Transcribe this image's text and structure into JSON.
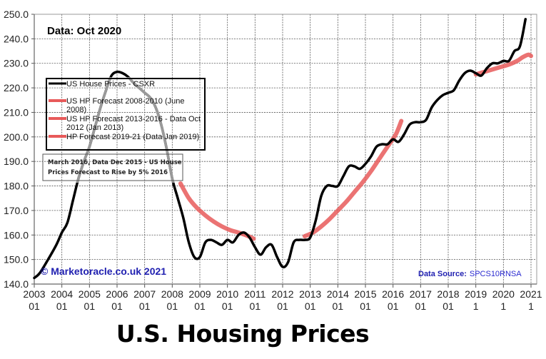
{
  "chart_data": {
    "type": "line",
    "title": "U.S. Housing Prices",
    "data_label": "Data:  Oct 2020",
    "xlabel": "",
    "ylabel": "",
    "xlim": [
      2003.0,
      2021.0
    ],
    "ylim": [
      140.0,
      250.0
    ],
    "grid": true,
    "y_ticks": [
      "140.0",
      "150.0",
      "160.0",
      "170.0",
      "180.0",
      "190.0",
      "200.0",
      "210.0",
      "220.0",
      "230.0",
      "240.0",
      "250.0"
    ],
    "x_ticks": [
      {
        "year": "2003",
        "month": "01"
      },
      {
        "year": "2004",
        "month": "01"
      },
      {
        "year": "2005",
        "month": "01"
      },
      {
        "year": "2006",
        "month": "01"
      },
      {
        "year": "2007",
        "month": "01"
      },
      {
        "year": "2008",
        "month": "01"
      },
      {
        "year": "2009",
        "month": "01"
      },
      {
        "year": "2010",
        "month": "01"
      },
      {
        "year": "2011",
        "month": "01"
      },
      {
        "year": "2012",
        "month": "01"
      },
      {
        "year": "2013",
        "month": "01"
      },
      {
        "year": "2014",
        "month": "01"
      },
      {
        "year": "2015",
        "month": "01"
      },
      {
        "year": "2016",
        "month": "01"
      },
      {
        "year": "2017",
        "month": "01"
      },
      {
        "year": "2018",
        "month": "01"
      },
      {
        "year": "2019",
        "month": "1"
      },
      {
        "year": "2020",
        "month": "1"
      },
      {
        "year": "2021",
        "month": "1"
      }
    ],
    "legend": {
      "placement": "top-left",
      "entries": [
        {
          "label": "US House Prices - CSXR",
          "color": "#000000"
        },
        {
          "label": "US HP Forecast 2008-2010 (June 2008)",
          "color": "#e85a5a"
        },
        {
          "label": "US HP Forecast 2013-2016 - Data Oct 2012 (Jan 2013)",
          "color": "#e85a5a"
        },
        {
          "label": "HP Forecast 2019-21 (Data Jan 2019)",
          "color": "#e85a5a"
        }
      ]
    },
    "annotation_box": {
      "line1": "March 2016, Data Dec 2015 - US House",
      "line2": "Prices Forecast to Rise by 5% 2016"
    },
    "copyright": "© Marketoracle.co.uk 2021",
    "source_label": "Data Source:",
    "source_value": "SPCS10RNSA",
    "series": [
      {
        "name": "US House Prices - CSXR",
        "color": "#000000",
        "x": [
          2003.0,
          2003.2,
          2003.5,
          2003.8,
          2004.0,
          2004.2,
          2004.4,
          2004.6,
          2004.8,
          2005.0,
          2005.2,
          2005.4,
          2005.6,
          2005.8,
          2006.0,
          2006.2,
          2006.4,
          2006.6,
          2006.8,
          2007.0,
          2007.2,
          2007.4,
          2007.6,
          2007.8,
          2008.0,
          2008.2,
          2008.4,
          2008.6,
          2008.8,
          2009.0,
          2009.2,
          2009.4,
          2009.6,
          2009.8,
          2010.0,
          2010.2,
          2010.4,
          2010.6,
          2010.8,
          2011.0,
          2011.2,
          2011.4,
          2011.6,
          2011.8,
          2012.0,
          2012.2,
          2012.4,
          2012.6,
          2012.8,
          2013.0,
          2013.2,
          2013.4,
          2013.6,
          2013.8,
          2014.0,
          2014.2,
          2014.4,
          2014.6,
          2014.8,
          2015.0,
          2015.2,
          2015.4,
          2015.6,
          2015.8,
          2016.0,
          2016.2,
          2016.4,
          2016.6,
          2016.8,
          2017.0,
          2017.2,
          2017.4,
          2017.6,
          2017.8,
          2018.0,
          2018.2,
          2018.4,
          2018.6,
          2018.8,
          2019.0,
          2019.2,
          2019.4,
          2019.6,
          2019.8,
          2020.0,
          2020.2,
          2020.4,
          2020.6,
          2020.8
        ],
        "values": [
          142.5,
          144.5,
          150,
          156,
          161,
          165,
          174,
          183,
          190,
          196,
          204,
          212,
          219,
          225,
          226.5,
          226,
          224.5,
          222,
          220,
          218,
          216,
          212,
          205,
          195,
          183,
          175,
          167,
          157,
          151,
          151,
          157,
          158,
          157,
          156,
          158,
          157,
          160,
          161,
          159,
          155,
          152,
          155,
          156,
          151,
          147,
          149,
          157,
          158,
          158,
          159,
          166,
          176,
          180,
          180,
          180,
          184,
          188,
          188,
          187,
          189,
          192,
          196,
          197,
          197,
          199,
          198,
          201,
          205,
          206,
          206,
          207,
          212,
          215,
          217,
          218,
          219,
          223,
          226,
          227,
          226,
          225,
          228,
          230,
          230,
          231,
          231,
          235,
          237,
          248
        ]
      },
      {
        "name": "US HP Forecast 2008-2010 (June 2008)",
        "color": "#e85a5a",
        "x": [
          2008.3,
          2008.6,
          2008.9,
          2009.2,
          2009.5,
          2009.8,
          2010.1,
          2010.4,
          2010.7,
          2010.95
        ],
        "values": [
          181,
          175,
          171,
          168,
          165.5,
          163.5,
          162,
          161,
          159.8,
          158.5
        ]
      },
      {
        "name": "US HP Forecast 2013-2016 - Data Oct 2012 (Jan 2013)",
        "color": "#e85a5a",
        "x": [
          2012.8,
          2013.1,
          2013.4,
          2013.7,
          2014.0,
          2014.3,
          2014.6,
          2014.9,
          2015.2,
          2015.5,
          2015.8,
          2016.1,
          2016.3
        ],
        "values": [
          159.5,
          161,
          163.5,
          166.5,
          170,
          173.5,
          177.5,
          181.5,
          186,
          191,
          196,
          201,
          206.5
        ]
      },
      {
        "name": "HP Forecast 2019-21 (Data Jan 2019)",
        "color": "#e85a5a",
        "x": [
          2019.0,
          2019.3,
          2019.6,
          2019.9,
          2020.2,
          2020.5,
          2020.7,
          2020.9,
          2021.0
        ],
        "values": [
          225.5,
          226.5,
          227.5,
          228.5,
          229.5,
          231,
          232.5,
          233.5,
          233
        ]
      }
    ]
  }
}
